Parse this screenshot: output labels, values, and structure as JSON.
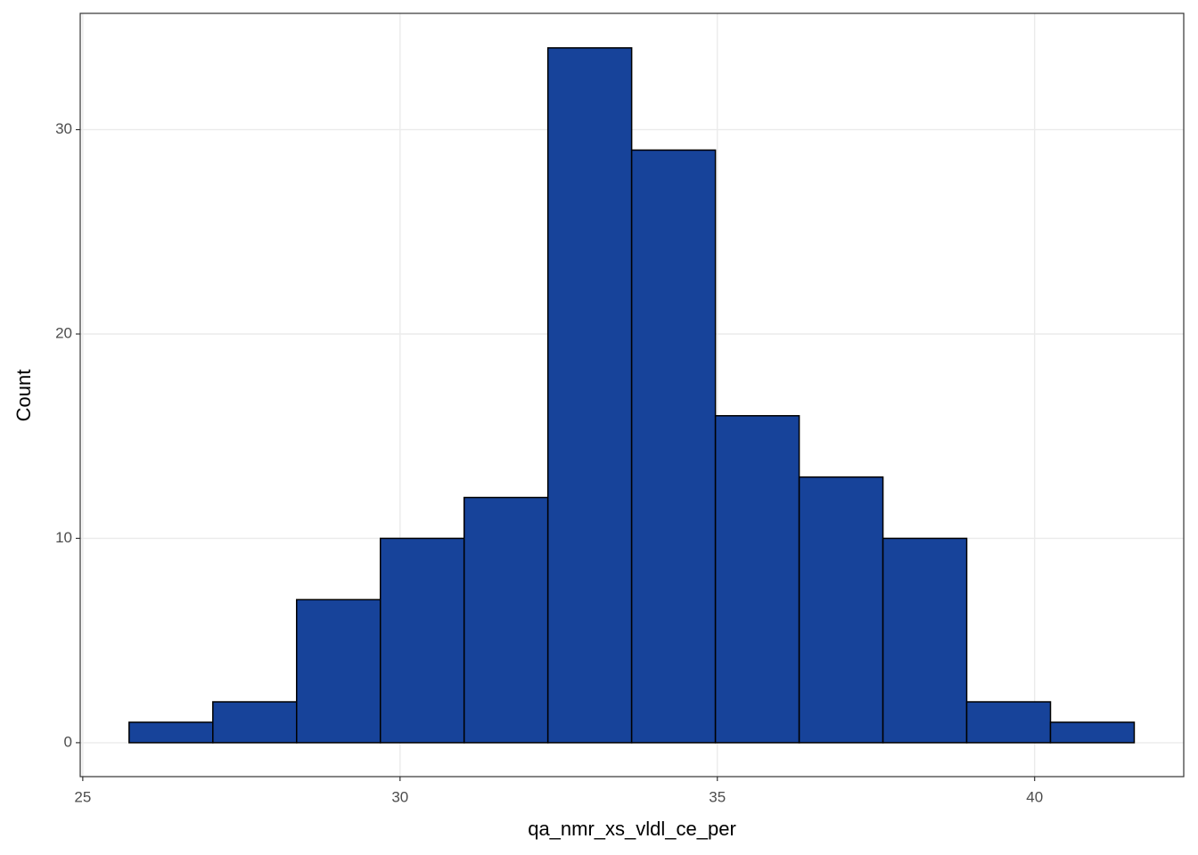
{
  "chart_data": {
    "type": "histogram",
    "x_label": "qa_nmr_xs_vldl_ce_per",
    "y_label": "Count",
    "bins": [
      25.73,
      27.05,
      28.37,
      29.69,
      31.01,
      32.33,
      33.65,
      34.97,
      36.29,
      37.61,
      38.93,
      40.25,
      41.57
    ],
    "values": [
      1,
      2,
      7,
      10,
      12,
      34,
      29,
      16,
      13,
      10,
      2,
      1
    ],
    "color": "#17439a",
    "xlim": [
      24.96,
      42.35
    ],
    "xticks": [
      25,
      30,
      35,
      40
    ],
    "ylim": [
      -1.66,
      35.69
    ],
    "yticks": [
      0,
      10,
      20,
      30
    ],
    "grid": true
  }
}
